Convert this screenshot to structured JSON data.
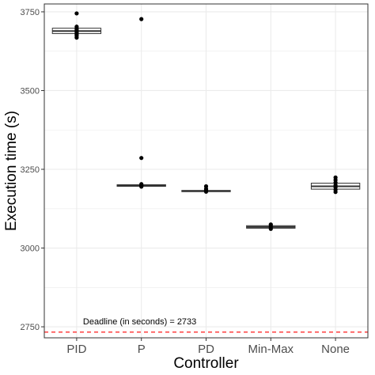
{
  "chart_data": {
    "type": "boxplot",
    "xlabel": "Controller",
    "ylabel": "Execution time (s)",
    "categories": [
      "PID",
      "P",
      "PD",
      "Min-Max",
      "None"
    ],
    "y_ticks": [
      2750,
      3000,
      3250,
      3500,
      3750
    ],
    "ylim": [
      2715,
      3775
    ],
    "grid": true,
    "boxes": [
      {
        "category": "PID",
        "q1": 3681,
        "median": 3689,
        "q3": 3698,
        "whisker_low": 3668,
        "whisker_high": 3710
      },
      {
        "category": "P",
        "q1": 3196,
        "median": 3199,
        "q3": 3201,
        "whisker_low": 3194,
        "whisker_high": 3204
      },
      {
        "category": "PD",
        "q1": 3179,
        "median": 3181,
        "q3": 3183,
        "whisker_low": 3177,
        "whisker_high": 3186
      },
      {
        "category": "Min-Max",
        "q1": 3063,
        "median": 3067,
        "q3": 3071,
        "whisker_low": 3060,
        "whisker_high": 3075
      },
      {
        "category": "None",
        "q1": 3187,
        "median": 3196,
        "q3": 3206,
        "whisker_low": 3176,
        "whisker_high": 3224
      }
    ],
    "points": [
      {
        "category": "PID",
        "values": [
          3745,
          3703,
          3698,
          3694,
          3690,
          3686,
          3682,
          3678,
          3674,
          3668
        ]
      },
      {
        "category": "P",
        "values": [
          3727,
          3286,
          3203,
          3199,
          3197,
          3195
        ]
      },
      {
        "category": "PD",
        "values": [
          3196,
          3188,
          3183,
          3179
        ]
      },
      {
        "category": "Min-Max",
        "values": [
          3075,
          3071,
          3066,
          3061
        ]
      },
      {
        "category": "None",
        "values": [
          3224,
          3216,
          3208,
          3200,
          3193,
          3185,
          3178
        ]
      }
    ],
    "reference_line": {
      "value": 2733,
      "label": "Deadline (in seconds) =  2733",
      "color": "#ff0000",
      "style": "dashed"
    }
  },
  "colors": {
    "grid": "#ebebeb",
    "box_stroke": "#333333",
    "point": "#000000",
    "panel_border": "#333333"
  }
}
